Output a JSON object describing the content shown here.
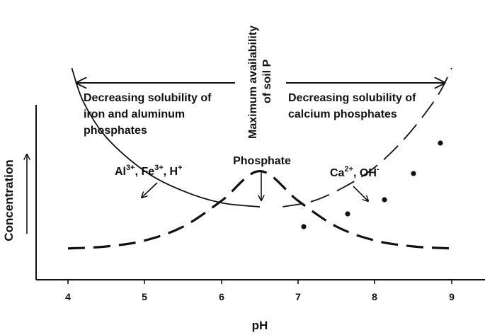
{
  "chart_data": {
    "type": "line",
    "x_axis": {
      "label": "pH",
      "ticks": [
        "4",
        "5",
        "6",
        "7",
        "8",
        "9"
      ],
      "range": [
        3.6,
        9.4
      ]
    },
    "y_axis": {
      "label": "Concentration"
    },
    "series": [
      {
        "name": "Al3+, Fe3+, H+",
        "style": "solid",
        "x": [
          4.05,
          4.2,
          4.5,
          5.0,
          5.5,
          6.0,
          6.5
        ],
        "y": [
          0.95,
          0.78,
          0.6,
          0.43,
          0.33,
          0.27,
          0.25
        ]
      },
      {
        "name": "Phosphate",
        "style": "dashed",
        "x": [
          4.0,
          4.5,
          5.0,
          5.5,
          6.0,
          6.5,
          7.0,
          7.5,
          8.0,
          8.5,
          9.0
        ],
        "y": [
          0.04,
          0.05,
          0.08,
          0.15,
          0.28,
          0.43,
          0.28,
          0.15,
          0.08,
          0.05,
          0.04
        ]
      },
      {
        "name": "Ca2+, OH-",
        "style": "dash-dot",
        "x": [
          6.8,
          7.2,
          7.6,
          8.0,
          8.4,
          8.8,
          9.0
        ],
        "y": [
          0.25,
          0.28,
          0.35,
          0.45,
          0.6,
          0.8,
          0.95
        ]
      }
    ]
  },
  "annotations": {
    "left_arrow_text_line1": "Decreasing solubility of",
    "left_arrow_text_line2": "iron and aluminum",
    "left_arrow_text_line3": "phosphates",
    "right_arrow_text_line1": "Decreasing solubility of",
    "right_arrow_text_line2": "calcium phosphates",
    "center_vertical_line1": "Maximum availability",
    "center_vertical_line2": "of soil P",
    "ion_left_base_1": "Al",
    "ion_left_sup_1": "3+",
    "ion_left_sep_1": ", Fe",
    "ion_left_sup_2": "3+",
    "ion_left_sep_2": ", H",
    "ion_left_sup_3": "+",
    "ion_right_base_1": "Ca",
    "ion_right_sup_1": "2+",
    "ion_right_sep_1": ", OH",
    "ion_right_sup_2": "-",
    "phosphate_label": "Phosphate"
  },
  "colors": {
    "ink": "#111111",
    "background": "#ffffff"
  }
}
